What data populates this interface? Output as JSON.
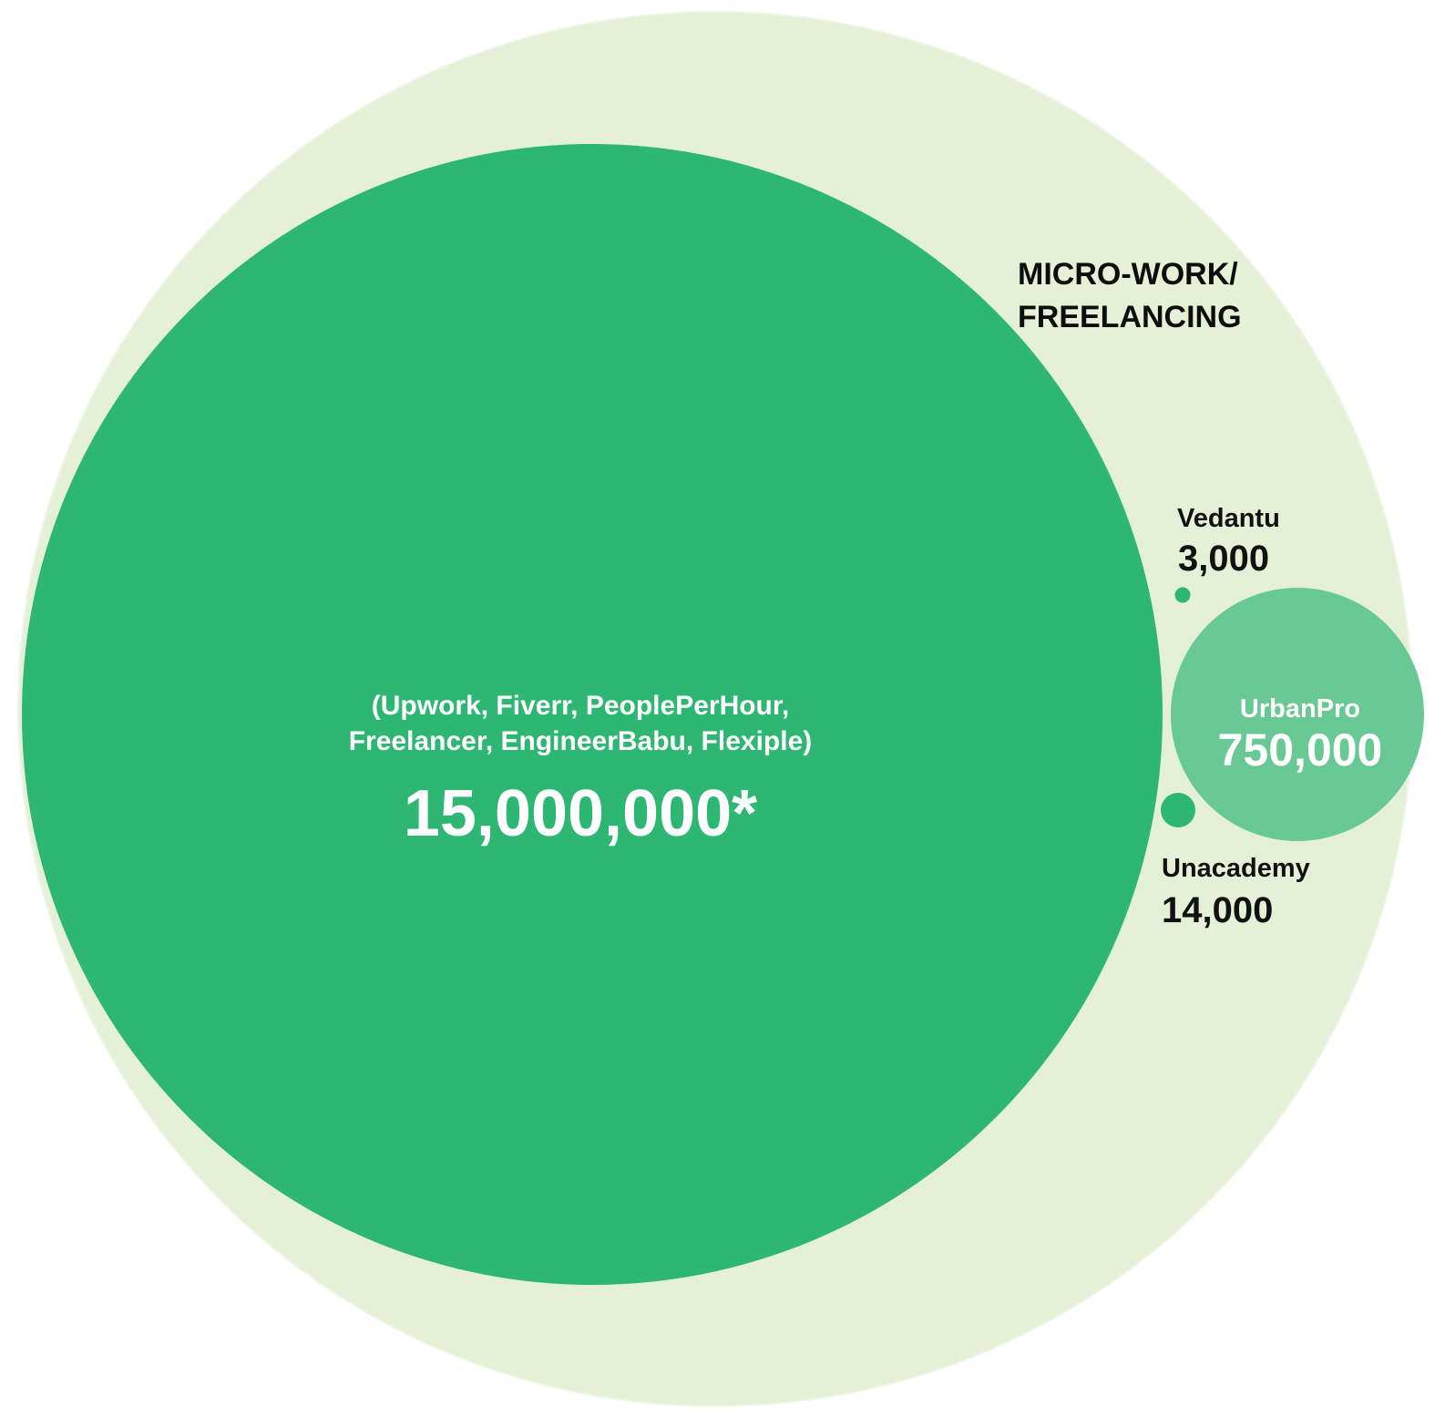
{
  "chart_data": {
    "type": "bubble",
    "category": "MICRO-WORK/ FREELANCING",
    "category_lines": [
      "MICRO-WORK/",
      "FREELANCING"
    ],
    "bubbles": [
      {
        "id": "freelance-platforms",
        "name_lines": [
          "(Upwork, Fiverr, PeoplePerHour,",
          "Freelancer, EngineerBabu, Flexiple)"
        ],
        "value": 15000000,
        "value_label": "15,000,000*"
      },
      {
        "id": "urbanpro",
        "name": "UrbanPro",
        "value": 750000,
        "value_label": "750,000"
      },
      {
        "id": "unacademy",
        "name": "Unacademy",
        "value": 14000,
        "value_label": "14,000"
      },
      {
        "id": "vedantu",
        "name": "Vedantu",
        "value": 3000,
        "value_label": "3,000"
      }
    ]
  },
  "colors": {
    "outer": "#e5f1d6",
    "primary": "#2eb673",
    "urbanpro": "#69c994",
    "small": "#2eb673"
  }
}
